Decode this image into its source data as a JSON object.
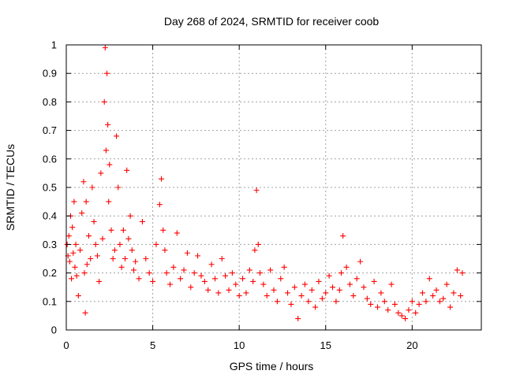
{
  "chart_data": {
    "type": "scatter",
    "title": "Day 268 of 2024, SRMTID for receiver coob",
    "xlabel": "GPS time / hours",
    "ylabel": "SRMTID / TECUs",
    "xlim": [
      0,
      24
    ],
    "ylim": [
      0,
      1
    ],
    "xticks": [
      0,
      5,
      10,
      15,
      20
    ],
    "xtick_labels": [
      "0",
      "5",
      "10",
      "15",
      "20"
    ],
    "yticks": [
      0,
      0.1,
      0.2,
      0.3,
      0.4,
      0.5,
      0.6,
      0.7,
      0.8,
      0.9,
      1
    ],
    "ytick_labels": [
      "0",
      "0.1",
      "0.2",
      "0.3",
      "0.4",
      "0.5",
      "0.6",
      "0.7",
      "0.8",
      "0.9",
      "1"
    ],
    "grid": true,
    "marker": "+",
    "series": [
      {
        "name": "SRMTID",
        "color": "#ff0000",
        "x": [
          0.05,
          0.1,
          0.15,
          0.2,
          0.25,
          0.3,
          0.35,
          0.4,
          0.45,
          0.5,
          0.55,
          0.6,
          0.7,
          0.8,
          0.9,
          1.0,
          1.05,
          1.1,
          1.15,
          1.2,
          1.3,
          1.4,
          1.5,
          1.6,
          1.7,
          1.8,
          1.9,
          2.0,
          2.1,
          2.2,
          2.25,
          2.3,
          2.35,
          2.4,
          2.45,
          2.5,
          2.6,
          2.7,
          2.8,
          2.9,
          3.0,
          3.1,
          3.2,
          3.3,
          3.4,
          3.5,
          3.6,
          3.7,
          3.8,
          3.9,
          4.0,
          4.2,
          4.4,
          4.6,
          4.8,
          5.0,
          5.2,
          5.4,
          5.5,
          5.6,
          5.7,
          5.8,
          6.0,
          6.2,
          6.4,
          6.6,
          6.8,
          7.0,
          7.2,
          7.4,
          7.6,
          7.8,
          8.0,
          8.2,
          8.4,
          8.6,
          8.8,
          9.0,
          9.2,
          9.4,
          9.6,
          9.8,
          10.0,
          10.2,
          10.4,
          10.6,
          10.8,
          10.9,
          11.0,
          11.1,
          11.2,
          11.4,
          11.6,
          11.8,
          12.0,
          12.2,
          12.4,
          12.6,
          12.8,
          13.0,
          13.2,
          13.4,
          13.6,
          13.8,
          14.0,
          14.2,
          14.4,
          14.6,
          14.8,
          15.0,
          15.2,
          15.4,
          15.6,
          15.8,
          15.9,
          16.0,
          16.2,
          16.4,
          16.6,
          16.8,
          17.0,
          17.2,
          17.4,
          17.6,
          17.8,
          18.0,
          18.2,
          18.4,
          18.6,
          18.8,
          19.0,
          19.2,
          19.4,
          19.6,
          19.8,
          20.0,
          20.2,
          20.4,
          20.6,
          20.8,
          21.0,
          21.2,
          21.4,
          21.6,
          21.8,
          22.0,
          22.2,
          22.4,
          22.6,
          22.8,
          22.9
        ],
        "y": [
          0.3,
          0.26,
          0.33,
          0.24,
          0.4,
          0.18,
          0.36,
          0.27,
          0.45,
          0.22,
          0.3,
          0.19,
          0.12,
          0.28,
          0.41,
          0.52,
          0.2,
          0.06,
          0.45,
          0.23,
          0.33,
          0.25,
          0.5,
          0.38,
          0.3,
          0.26,
          0.17,
          0.55,
          0.32,
          0.8,
          0.99,
          0.63,
          0.9,
          0.72,
          0.45,
          0.58,
          0.35,
          0.25,
          0.28,
          0.68,
          0.5,
          0.3,
          0.22,
          0.35,
          0.25,
          0.56,
          0.32,
          0.4,
          0.28,
          0.21,
          0.24,
          0.18,
          0.38,
          0.25,
          0.2,
          0.17,
          0.3,
          0.44,
          0.53,
          0.35,
          0.28,
          0.2,
          0.16,
          0.22,
          0.34,
          0.18,
          0.21,
          0.27,
          0.15,
          0.2,
          0.26,
          0.19,
          0.17,
          0.14,
          0.23,
          0.18,
          0.13,
          0.25,
          0.19,
          0.14,
          0.2,
          0.16,
          0.12,
          0.18,
          0.13,
          0.21,
          0.17,
          0.28,
          0.49,
          0.3,
          0.2,
          0.16,
          0.12,
          0.21,
          0.14,
          0.1,
          0.18,
          0.22,
          0.13,
          0.09,
          0.15,
          0.04,
          0.12,
          0.16,
          0.1,
          0.14,
          0.08,
          0.17,
          0.11,
          0.13,
          0.19,
          0.15,
          0.1,
          0.14,
          0.2,
          0.33,
          0.22,
          0.16,
          0.12,
          0.18,
          0.24,
          0.15,
          0.11,
          0.09,
          0.17,
          0.08,
          0.13,
          0.1,
          0.07,
          0.16,
          0.09,
          0.06,
          0.05,
          0.04,
          0.07,
          0.1,
          0.06,
          0.09,
          0.13,
          0.1,
          0.18,
          0.12,
          0.14,
          0.1,
          0.11,
          0.16,
          0.08,
          0.13,
          0.21,
          0.12,
          0.2
        ]
      }
    ]
  }
}
